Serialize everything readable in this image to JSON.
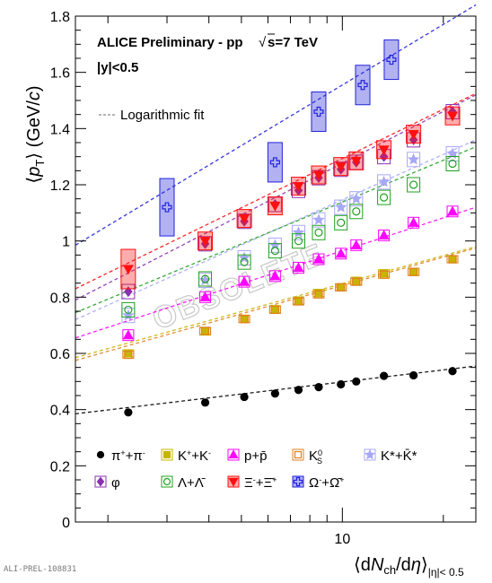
{
  "chart_data": {
    "type": "scatter",
    "title_line1": "ALICE Preliminary - pp",
    "title_energy": "s=7 TeV",
    "title_sqrt": "√",
    "rapidity_cut": "|y|<0.5",
    "watermark": "OBSOLETE",
    "footer_id": "ALI-PREL-108831",
    "xlabel": "⟨dN_ch/dη⟩_|η|<0.5",
    "xlabel_parts": {
      "open": "⟨dN",
      "ch_sub": "ch",
      "mid": "/dη⟩",
      "eta_sub": "|η|< 0.5"
    },
    "ylabel_parts": {
      "open": "⟨p",
      "t_sub": "T",
      "close": "⟩ (GeV/",
      "c": "c",
      "end": ")"
    },
    "x_scale": "log",
    "xlim": [
      1.6,
      25
    ],
    "ylim": [
      0,
      1.8
    ],
    "y_ticks": [
      0,
      0.2,
      0.4,
      0.6,
      0.8,
      1,
      1.2,
      1.4,
      1.6,
      1.8
    ],
    "y_tick_labels": [
      "0",
      "0.2",
      "0.4",
      "0.6",
      "0.8",
      "1",
      "1.2",
      "1.4",
      "1.6",
      "1.8"
    ],
    "x_tick_labels": [
      {
        "value": 10,
        "label": "10"
      }
    ],
    "fit_legend_label": "Logarithmic fit",
    "x": [
      2.3,
      3.9,
      5.1,
      6.3,
      7.4,
      8.5,
      9.9,
      11.0,
      13.3,
      16.3,
      21.3
    ],
    "series": [
      {
        "name": "π⁺+π⁻",
        "legend_html": "π<tspan baseline-shift='super' font-size='9'>+</tspan>+π<tspan baseline-shift='super' font-size='9'>-</tspan>",
        "color": "#000000",
        "marker": "circle-filled",
        "values": [
          0.39,
          0.425,
          0.445,
          0.457,
          0.47,
          0.48,
          0.49,
          0.5,
          0.52,
          0.522,
          0.537
        ],
        "fit": [
          0.385,
          0.555
        ]
      },
      {
        "name": "K⁺+K⁻",
        "legend_html": "K<tspan baseline-shift='super' font-size='9'>+</tspan>+K<tspan baseline-shift='super' font-size='9'>-</tspan>",
        "color": "#c8b400",
        "marker": "square-filled",
        "values": [
          0.6,
          0.678,
          0.723,
          0.757,
          0.788,
          0.815,
          0.835,
          0.858,
          0.885,
          0.89,
          0.935
        ],
        "fit": [
          0.585,
          0.98
        ]
      },
      {
        "name": "p+p̄",
        "legend_html": "p+p̄",
        "color": "#ff00ff",
        "marker": "triangle-up-filled",
        "values": [
          0.665,
          0.8,
          0.855,
          0.875,
          0.905,
          0.935,
          0.955,
          0.985,
          1.02,
          1.065,
          1.105
        ],
        "fit": [
          0.655,
          1.12
        ]
      },
      {
        "name": "K⁰S",
        "legend_html": "K<tspan baseline-shift='super' font-size='9'>0</tspan>",
        "legend_sub": "S",
        "color": "#e08020",
        "marker": "square-open",
        "values": [
          0.595,
          0.68,
          0.722,
          0.755,
          0.785,
          0.81,
          0.835,
          0.855,
          0.88,
          0.89,
          0.935
        ],
        "fit": [
          0.575,
          0.975
        ]
      },
      {
        "name": "K*+K̄*",
        "legend_html": "K*+K̄*",
        "color": "#a8a8f8",
        "marker": "star-filled",
        "values": [
          0.735,
          0.86,
          0.94,
          0.985,
          1.03,
          1.075,
          1.12,
          1.15,
          1.21,
          1.29,
          1.31
        ],
        "fit": [
          0.72,
          1.36
        ]
      },
      {
        "name": "φ",
        "legend_html": "φ",
        "color": "#8a30b0",
        "marker": "diamond-filled",
        "values": [
          0.82,
          0.99,
          1.07,
          1.13,
          1.18,
          1.225,
          1.255,
          1.28,
          1.3,
          1.36,
          1.46
        ],
        "fit": [
          0.79,
          1.52
        ]
      },
      {
        "name": "Λ+Λ̄",
        "legend_html": "Λ+Λ̄",
        "color": "#20a020",
        "marker": "circle-open",
        "values": [
          0.755,
          0.865,
          0.925,
          0.965,
          1.0,
          1.03,
          1.065,
          1.105,
          1.155,
          1.2,
          1.275
        ],
        "fit": [
          0.745,
          1.335
        ]
      },
      {
        "name": "Ξ⁻+Ξ̄⁺",
        "legend_html": "Ξ<tspan baseline-shift='super' font-size='9'>-</tspan>+Ξ̄<tspan baseline-shift='super' font-size='9'>+</tspan>",
        "color": "#ff1010",
        "marker": "triangle-down-filled",
        "values": [
          0.9,
          1.0,
          1.08,
          1.125,
          1.195,
          1.235,
          1.265,
          1.285,
          1.325,
          1.38,
          1.445
        ],
        "fit": [
          0.83,
          1.525
        ]
      },
      {
        "name": "Ω⁻+Ω̄⁺",
        "legend_html": "Ω<tspan baseline-shift='super' font-size='9'>-</tspan>+Ω̄<tspan baseline-shift='super' font-size='9'>+</tspan>",
        "color": "#2222dd",
        "marker": "cross-open",
        "x": [
          3.0,
          6.3,
          8.5,
          11.5,
          14.0
        ],
        "values": [
          1.12,
          1.28,
          1.46,
          1.555,
          1.645
        ],
        "fit": [
          0.985,
          1.84
        ]
      }
    ],
    "legend_order": [
      0,
      1,
      2,
      3,
      4,
      5,
      6,
      7,
      8
    ],
    "grid": false,
    "legend_position": "bottom"
  }
}
